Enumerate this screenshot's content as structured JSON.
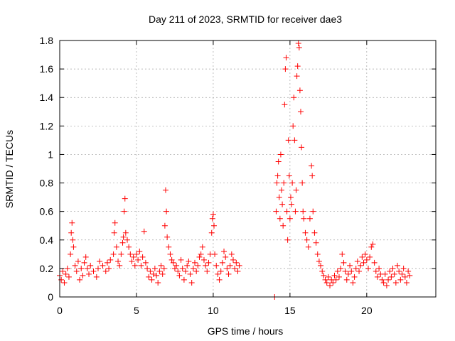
{
  "chart_data": {
    "type": "scatter",
    "title": "Day 211 of 2023, SRMTID for receiver dae3",
    "xlabel": "GPS time / hours",
    "ylabel": "SRMTID / TECUs",
    "xlim": [
      0,
      24.5
    ],
    "ylim": [
      0,
      1.8
    ],
    "xticks": [
      0,
      5,
      10,
      15,
      20
    ],
    "xtick_labels": [
      "0",
      "5",
      "10",
      "15",
      "20"
    ],
    "yticks": [
      0,
      0.2,
      0.4,
      0.6,
      0.8,
      1.0,
      1.2,
      1.4,
      1.6,
      1.8
    ],
    "ytick_labels": [
      "0",
      "0.2",
      "0.4",
      "0.6",
      "0.8",
      "1",
      "1.2",
      "1.4",
      "1.6",
      "1.8"
    ],
    "grid": true,
    "marker": "plus",
    "color": "#ff0000",
    "series": [
      {
        "name": "SRMTID",
        "points": [
          [
            0.0,
            0.15
          ],
          [
            0.1,
            0.12
          ],
          [
            0.2,
            0.18
          ],
          [
            0.3,
            0.1
          ],
          [
            0.4,
            0.16
          ],
          [
            0.5,
            0.2
          ],
          [
            0.6,
            0.14
          ],
          [
            0.7,
            0.3
          ],
          [
            0.75,
            0.45
          ],
          [
            0.8,
            0.52
          ],
          [
            0.85,
            0.4
          ],
          [
            0.9,
            0.35
          ],
          [
            1.0,
            0.22
          ],
          [
            1.1,
            0.18
          ],
          [
            1.2,
            0.25
          ],
          [
            1.3,
            0.12
          ],
          [
            1.4,
            0.2
          ],
          [
            1.5,
            0.15
          ],
          [
            1.6,
            0.24
          ],
          [
            1.7,
            0.28
          ],
          [
            1.8,
            0.2
          ],
          [
            1.9,
            0.16
          ],
          [
            2.0,
            0.22
          ],
          [
            2.2,
            0.18
          ],
          [
            2.4,
            0.14
          ],
          [
            2.5,
            0.2
          ],
          [
            2.6,
            0.25
          ],
          [
            2.8,
            0.22
          ],
          [
            3.0,
            0.18
          ],
          [
            3.1,
            0.24
          ],
          [
            3.2,
            0.2
          ],
          [
            3.3,
            0.26
          ],
          [
            3.5,
            0.3
          ],
          [
            3.55,
            0.45
          ],
          [
            3.6,
            0.52
          ],
          [
            3.7,
            0.35
          ],
          [
            3.8,
            0.25
          ],
          [
            3.9,
            0.22
          ],
          [
            4.0,
            0.3
          ],
          [
            4.1,
            0.38
          ],
          [
            4.15,
            0.42
          ],
          [
            4.2,
            0.6
          ],
          [
            4.25,
            0.69
          ],
          [
            4.3,
            0.45
          ],
          [
            4.4,
            0.4
          ],
          [
            4.5,
            0.35
          ],
          [
            4.6,
            0.3
          ],
          [
            4.7,
            0.25
          ],
          [
            4.8,
            0.28
          ],
          [
            4.9,
            0.22
          ],
          [
            5.0,
            0.3
          ],
          [
            5.1,
            0.26
          ],
          [
            5.2,
            0.32
          ],
          [
            5.3,
            0.22
          ],
          [
            5.4,
            0.28
          ],
          [
            5.5,
            0.46
          ],
          [
            5.6,
            0.24
          ],
          [
            5.7,
            0.2
          ],
          [
            5.8,
            0.14
          ],
          [
            5.9,
            0.18
          ],
          [
            6.0,
            0.12
          ],
          [
            6.1,
            0.16
          ],
          [
            6.2,
            0.2
          ],
          [
            6.3,
            0.15
          ],
          [
            6.4,
            0.1
          ],
          [
            6.5,
            0.18
          ],
          [
            6.6,
            0.22
          ],
          [
            6.7,
            0.16
          ],
          [
            6.8,
            0.2
          ],
          [
            6.85,
            0.5
          ],
          [
            6.9,
            0.75
          ],
          [
            6.95,
            0.6
          ],
          [
            7.0,
            0.42
          ],
          [
            7.1,
            0.35
          ],
          [
            7.2,
            0.3
          ],
          [
            7.3,
            0.26
          ],
          [
            7.4,
            0.24
          ],
          [
            7.5,
            0.2
          ],
          [
            7.6,
            0.22
          ],
          [
            7.7,
            0.18
          ],
          [
            7.8,
            0.15
          ],
          [
            7.9,
            0.26
          ],
          [
            8.0,
            0.2
          ],
          [
            8.1,
            0.12
          ],
          [
            8.2,
            0.18
          ],
          [
            8.3,
            0.22
          ],
          [
            8.4,
            0.25
          ],
          [
            8.5,
            0.16
          ],
          [
            8.6,
            0.1
          ],
          [
            8.7,
            0.2
          ],
          [
            8.8,
            0.24
          ],
          [
            8.9,
            0.18
          ],
          [
            9.0,
            0.22
          ],
          [
            9.1,
            0.28
          ],
          [
            9.2,
            0.3
          ],
          [
            9.3,
            0.35
          ],
          [
            9.4,
            0.26
          ],
          [
            9.5,
            0.22
          ],
          [
            9.6,
            0.18
          ],
          [
            9.7,
            0.24
          ],
          [
            9.8,
            0.3
          ],
          [
            9.9,
            0.45
          ],
          [
            9.95,
            0.55
          ],
          [
            10.0,
            0.58
          ],
          [
            10.05,
            0.5
          ],
          [
            10.1,
            0.3
          ],
          [
            10.2,
            0.22
          ],
          [
            10.3,
            0.16
          ],
          [
            10.4,
            0.12
          ],
          [
            10.5,
            0.18
          ],
          [
            10.6,
            0.24
          ],
          [
            10.7,
            0.32
          ],
          [
            10.8,
            0.28
          ],
          [
            10.9,
            0.2
          ],
          [
            11.0,
            0.16
          ],
          [
            11.1,
            0.22
          ],
          [
            11.2,
            0.3
          ],
          [
            11.3,
            0.26
          ],
          [
            11.4,
            0.2
          ],
          [
            11.5,
            0.24
          ],
          [
            11.6,
            0.18
          ],
          [
            11.7,
            0.22
          ],
          [
            14.0,
            0.0
          ],
          [
            14.1,
            0.6
          ],
          [
            14.15,
            0.8
          ],
          [
            14.2,
            0.85
          ],
          [
            14.25,
            0.95
          ],
          [
            14.3,
            0.7
          ],
          [
            14.35,
            0.55
          ],
          [
            14.4,
            1.0
          ],
          [
            14.45,
            0.75
          ],
          [
            14.5,
            0.65
          ],
          [
            14.55,
            0.5
          ],
          [
            14.6,
            0.8
          ],
          [
            14.65,
            1.35
          ],
          [
            14.7,
            1.6
          ],
          [
            14.75,
            1.68
          ],
          [
            14.8,
            0.6
          ],
          [
            14.85,
            0.4
          ],
          [
            14.9,
            1.1
          ],
          [
            14.95,
            0.85
          ],
          [
            15.0,
            0.55
          ],
          [
            15.05,
            0.7
          ],
          [
            15.1,
            0.65
          ],
          [
            15.15,
            0.8
          ],
          [
            15.2,
            1.2
          ],
          [
            15.25,
            1.4
          ],
          [
            15.3,
            1.1
          ],
          [
            15.35,
            0.6
          ],
          [
            15.4,
            0.75
          ],
          [
            15.45,
            1.55
          ],
          [
            15.5,
            1.62
          ],
          [
            15.55,
            1.78
          ],
          [
            15.6,
            1.75
          ],
          [
            15.65,
            1.45
          ],
          [
            15.7,
            1.3
          ],
          [
            15.75,
            1.05
          ],
          [
            15.8,
            0.8
          ],
          [
            15.85,
            0.6
          ],
          [
            15.9,
            0.55
          ],
          [
            16.0,
            0.45
          ],
          [
            16.1,
            0.4
          ],
          [
            16.2,
            0.35
          ],
          [
            16.3,
            0.55
          ],
          [
            16.4,
            0.92
          ],
          [
            16.45,
            0.85
          ],
          [
            16.5,
            0.6
          ],
          [
            16.6,
            0.45
          ],
          [
            16.7,
            0.38
          ],
          [
            16.8,
            0.3
          ],
          [
            16.9,
            0.25
          ],
          [
            17.0,
            0.22
          ],
          [
            17.1,
            0.18
          ],
          [
            17.2,
            0.15
          ],
          [
            17.3,
            0.12
          ],
          [
            17.4,
            0.1
          ],
          [
            17.5,
            0.14
          ],
          [
            17.6,
            0.08
          ],
          [
            17.7,
            0.12
          ],
          [
            17.8,
            0.1
          ],
          [
            17.9,
            0.15
          ],
          [
            18.0,
            0.12
          ],
          [
            18.1,
            0.18
          ],
          [
            18.2,
            0.14
          ],
          [
            18.3,
            0.2
          ],
          [
            18.4,
            0.3
          ],
          [
            18.5,
            0.24
          ],
          [
            18.6,
            0.18
          ],
          [
            18.7,
            0.12
          ],
          [
            18.8,
            0.16
          ],
          [
            18.9,
            0.22
          ],
          [
            19.0,
            0.18
          ],
          [
            19.1,
            0.1
          ],
          [
            19.2,
            0.14
          ],
          [
            19.3,
            0.2
          ],
          [
            19.4,
            0.25
          ],
          [
            19.5,
            0.18
          ],
          [
            19.6,
            0.22
          ],
          [
            19.7,
            0.28
          ],
          [
            19.8,
            0.24
          ],
          [
            19.9,
            0.3
          ],
          [
            20.0,
            0.26
          ],
          [
            20.1,
            0.2
          ],
          [
            20.2,
            0.28
          ],
          [
            20.3,
            0.35
          ],
          [
            20.4,
            0.37
          ],
          [
            20.5,
            0.24
          ],
          [
            20.6,
            0.18
          ],
          [
            20.7,
            0.14
          ],
          [
            20.8,
            0.2
          ],
          [
            20.9,
            0.16
          ],
          [
            21.0,
            0.12
          ],
          [
            21.1,
            0.1
          ],
          [
            21.2,
            0.16
          ],
          [
            21.3,
            0.08
          ],
          [
            21.4,
            0.12
          ],
          [
            21.5,
            0.18
          ],
          [
            21.6,
            0.14
          ],
          [
            21.7,
            0.2
          ],
          [
            21.8,
            0.16
          ],
          [
            21.9,
            0.1
          ],
          [
            22.0,
            0.22
          ],
          [
            22.1,
            0.18
          ],
          [
            22.2,
            0.12
          ],
          [
            22.3,
            0.16
          ],
          [
            22.4,
            0.2
          ],
          [
            22.5,
            0.14
          ],
          [
            22.6,
            0.1
          ],
          [
            22.7,
            0.18
          ],
          [
            22.8,
            0.15
          ]
        ]
      }
    ]
  }
}
